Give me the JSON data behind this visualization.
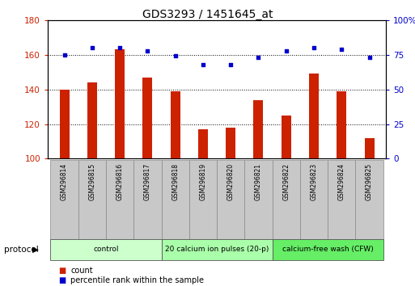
{
  "title": "GDS3293 / 1451645_at",
  "samples": [
    "GSM296814",
    "GSM296815",
    "GSM296816",
    "GSM296817",
    "GSM296818",
    "GSM296819",
    "GSM296820",
    "GSM296821",
    "GSM296822",
    "GSM296823",
    "GSM296824",
    "GSM296825"
  ],
  "counts": [
    140,
    144,
    163,
    147,
    139,
    117,
    118,
    134,
    125,
    149,
    139,
    112
  ],
  "percentile_ranks": [
    75,
    80,
    80,
    78,
    74,
    68,
    68,
    73,
    78,
    80,
    79,
    73
  ],
  "bar_color": "#cc2200",
  "dot_color": "#0000cc",
  "ylim_left": [
    100,
    180
  ],
  "ylim_right": [
    0,
    100
  ],
  "yticks_left": [
    100,
    120,
    140,
    160,
    180
  ],
  "yticks_right": [
    0,
    25,
    50,
    75,
    100
  ],
  "ytick_labels_right": [
    "0",
    "25",
    "50",
    "75",
    "100%"
  ],
  "groups": [
    {
      "label": "control",
      "start": 0,
      "end": 3,
      "color": "#ccffcc"
    },
    {
      "label": "20 calcium ion pulses (20-p)",
      "start": 4,
      "end": 7,
      "color": "#aaffaa"
    },
    {
      "label": "calcium-free wash (CFW)",
      "start": 8,
      "end": 11,
      "color": "#66ee66"
    }
  ],
  "protocol_label": "protocol",
  "legend_items": [
    {
      "label": "count",
      "color": "#cc2200"
    },
    {
      "label": "percentile rank within the sample",
      "color": "#0000cc"
    }
  ],
  "sample_box_color": "#c8c8c8",
  "sample_box_edge": "#888888"
}
